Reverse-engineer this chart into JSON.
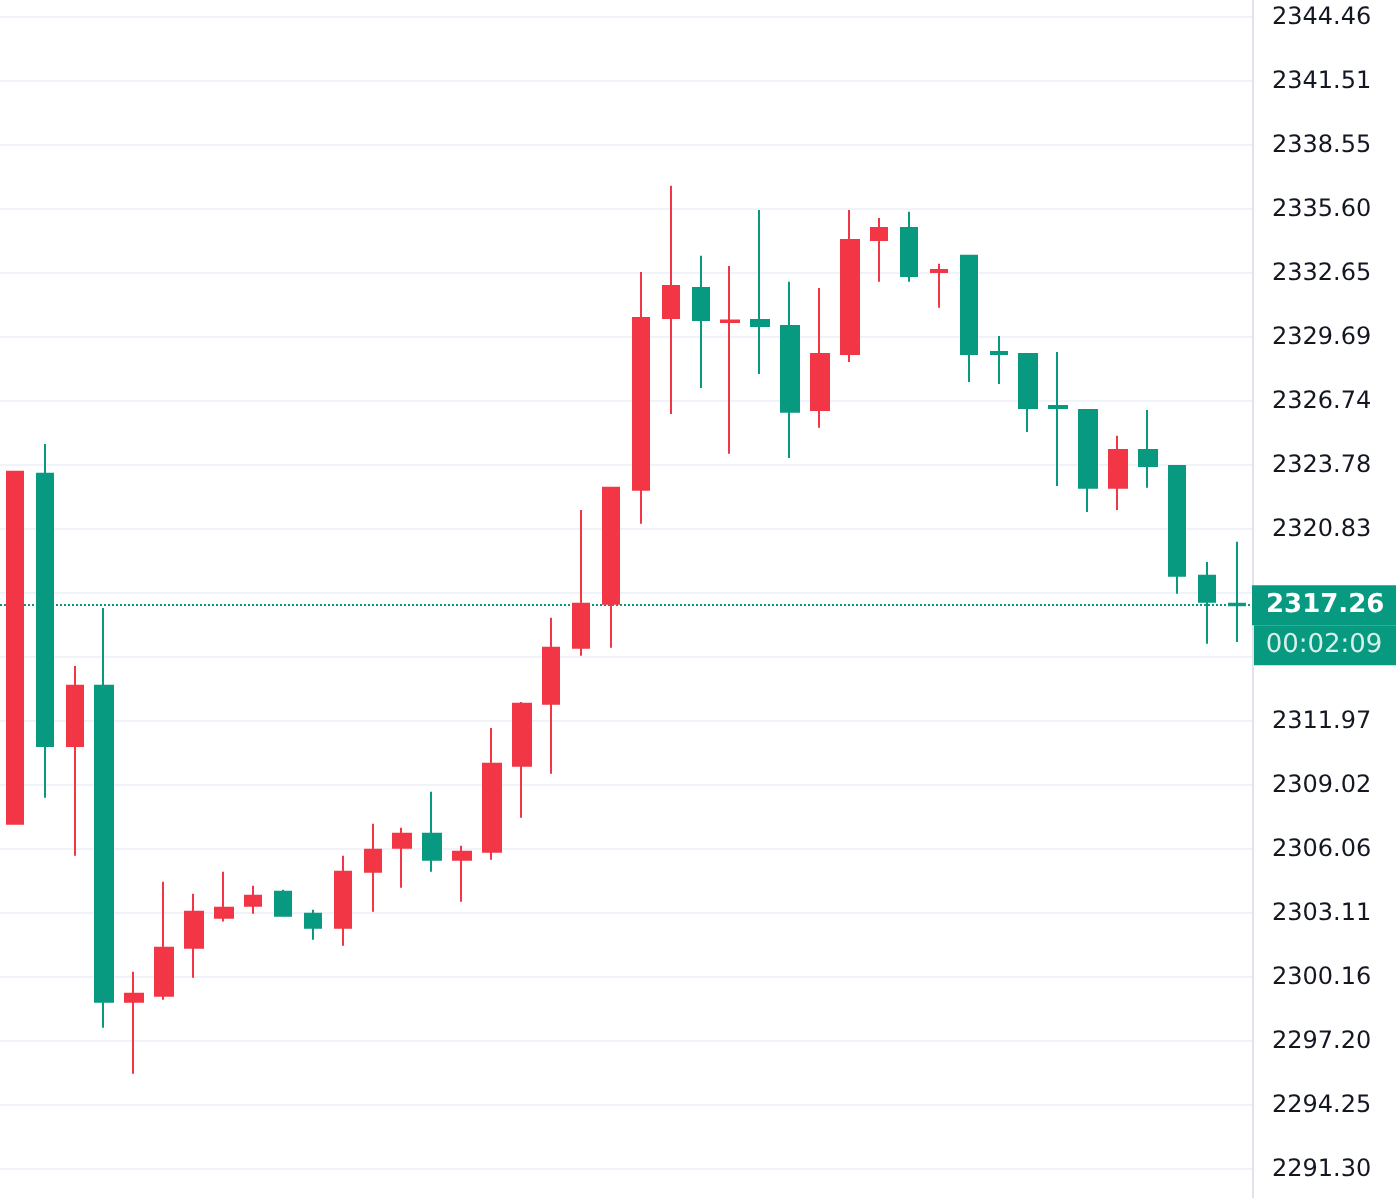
{
  "chart_data": {
    "type": "candlestick",
    "categories": [
      null,
      null,
      null,
      null,
      null,
      null,
      null,
      null,
      null,
      null,
      null,
      null,
      null,
      null,
      null,
      null,
      null,
      null,
      null,
      null,
      null,
      null,
      null,
      null,
      null,
      null,
      null,
      null,
      null,
      null,
      null,
      null,
      null,
      null,
      null,
      null,
      null,
      null,
      null,
      null,
      null,
      null
    ],
    "ohlc": [
      [
        2307.17,
        2323.42,
        2307.17,
        2323.42
      ],
      [
        2323.33,
        2324.71,
        2308.37,
        2310.77
      ],
      [
        2310.77,
        2314.46,
        2305.7,
        2313.54
      ],
      [
        2313.54,
        2317.14,
        2297.76,
        2298.96
      ],
      [
        2298.96,
        2300.34,
        2295.64,
        2299.33
      ],
      [
        2299.24,
        2304.5,
        2299.05,
        2301.45
      ],
      [
        2301.45,
        2303.94,
        2300.07,
        2303.11
      ],
      [
        2302.84,
        2304.96,
        2302.66,
        2303.3
      ],
      [
        2303.39,
        2304.31,
        2303.02,
        2303.85
      ],
      [
        2304.04,
        2304.13,
        2302.93,
        2302.93
      ],
      [
        2303.02,
        2303.2,
        2301.82,
        2302.37
      ],
      [
        2302.37,
        2305.7,
        2301.54,
        2304.96
      ],
      [
        2304.96,
        2307.17,
        2303.11,
        2305.97
      ],
      [
        2306.07,
        2306.99,
        2304.22,
        2306.71
      ],
      [
        2306.71,
        2308.65,
        2304.96,
        2305.51
      ],
      [
        2305.51,
        2306.16,
        2303.57,
        2305.88
      ],
      [
        2305.88,
        2311.6,
        2305.51,
        2309.94
      ],
      [
        2309.85,
        2312.8,
        2307.45,
        2312.71
      ],
      [
        2312.71,
        2316.68,
        2309.48,
        2315.3
      ],
      [
        2315.3,
        2321.66,
        2314.93,
        2317.33
      ],
      [
        2317.33,
        2322.68,
        2315.3,
        2322.68
      ],
      [
        2322.59,
        2332.65,
        2321.02,
        2330.52
      ],
      [
        2330.52,
        2336.62,
        2326.09,
        2332.0
      ],
      [
        2331.91,
        2333.39,
        2327.29,
        2330.43
      ],
      [
        2330.34,
        2332.92,
        2324.25,
        2330.4
      ],
      [
        2330.43,
        2335.51,
        2327.94,
        2330.15
      ],
      [
        2330.15,
        2332.19,
        2324.06,
        2326.19
      ],
      [
        2326.28,
        2331.91,
        2325.45,
        2328.86
      ],
      [
        2328.86,
        2335.51,
        2328.49,
        2334.12
      ],
      [
        2334.12,
        2335.14,
        2332.19,
        2334.68
      ],
      [
        2334.68,
        2335.42,
        2332.19,
        2332.46
      ],
      [
        2332.65,
        2333.02,
        2330.99,
        2332.74
      ],
      [
        2333.39,
        2333.39,
        2327.57,
        2328.86
      ],
      [
        2328.95,
        2329.69,
        2327.48,
        2328.86
      ],
      [
        2328.86,
        2328.86,
        2325.26,
        2326.37
      ],
      [
        2326.46,
        2328.95,
        2322.77,
        2326.37
      ],
      [
        2326.28,
        2326.28,
        2321.57,
        2322.68
      ],
      [
        2322.68,
        2325.08,
        2321.66,
        2324.43
      ],
      [
        2324.43,
        2326.28,
        2322.68,
        2323.69
      ],
      [
        2323.69,
        2323.69,
        2317.79,
        2318.62
      ],
      [
        2318.62,
        2319.26,
        2315.48,
        2317.42
      ],
      [
        2317.33,
        2320.19,
        2315.57,
        2317.26
      ]
    ],
    "colors": [
      "#f23645",
      "#089981",
      "#f23645",
      "#089981",
      "#f23645",
      "#f23645",
      "#f23645",
      "#f23645",
      "#f23645",
      "#089981",
      "#089981",
      "#f23645",
      "#f23645",
      "#f23645",
      "#089981",
      "#f23645",
      "#f23645",
      "#f23645",
      "#f23645",
      "#f23645",
      "#f23645",
      "#f23645",
      "#f23645",
      "#089981",
      "#f23645",
      "#089981",
      "#089981",
      "#f23645",
      "#f23645",
      "#f23645",
      "#089981",
      "#f23645",
      "#089981",
      "#089981",
      "#089981",
      "#089981",
      "#089981",
      "#f23645",
      "#089981",
      "#089981",
      "#089981",
      "#089981"
    ],
    "ylim": [
      2289.9,
      2345.2
    ],
    "yticks": [
      {
        "value": 2291.3,
        "label": "2291.30"
      },
      {
        "value": 2294.25,
        "label": "2294.25"
      },
      {
        "value": 2297.2,
        "label": "2297.20"
      },
      {
        "value": 2300.16,
        "label": "2300.16"
      },
      {
        "value": 2303.11,
        "label": "2303.11"
      },
      {
        "value": 2306.06,
        "label": "2306.06"
      },
      {
        "value": 2309.02,
        "label": "2309.02"
      },
      {
        "value": 2311.97,
        "label": "2311.97"
      },
      {
        "value": 2314.92,
        "label": null
      },
      {
        "value": 2317.88,
        "label": null
      },
      {
        "value": 2320.83,
        "label": "2320.83"
      },
      {
        "value": 2323.78,
        "label": "2323.78"
      },
      {
        "value": 2326.74,
        "label": "2326.74"
      },
      {
        "value": 2329.69,
        "label": "2329.69"
      },
      {
        "value": 2332.65,
        "label": "2332.65"
      },
      {
        "value": 2335.6,
        "label": "2335.60"
      },
      {
        "value": 2338.55,
        "label": "2338.55"
      },
      {
        "value": 2341.51,
        "label": "2341.51"
      },
      {
        "value": 2344.46,
        "label": "2344.46"
      }
    ],
    "grid": "y",
    "ref_lines": [
      {
        "axis": "y",
        "value": 2317.26,
        "label": "2317.26",
        "color": "#089981",
        "line_style": "dotted"
      }
    ],
    "annotations": [
      "00:02:09"
    ]
  }
}
